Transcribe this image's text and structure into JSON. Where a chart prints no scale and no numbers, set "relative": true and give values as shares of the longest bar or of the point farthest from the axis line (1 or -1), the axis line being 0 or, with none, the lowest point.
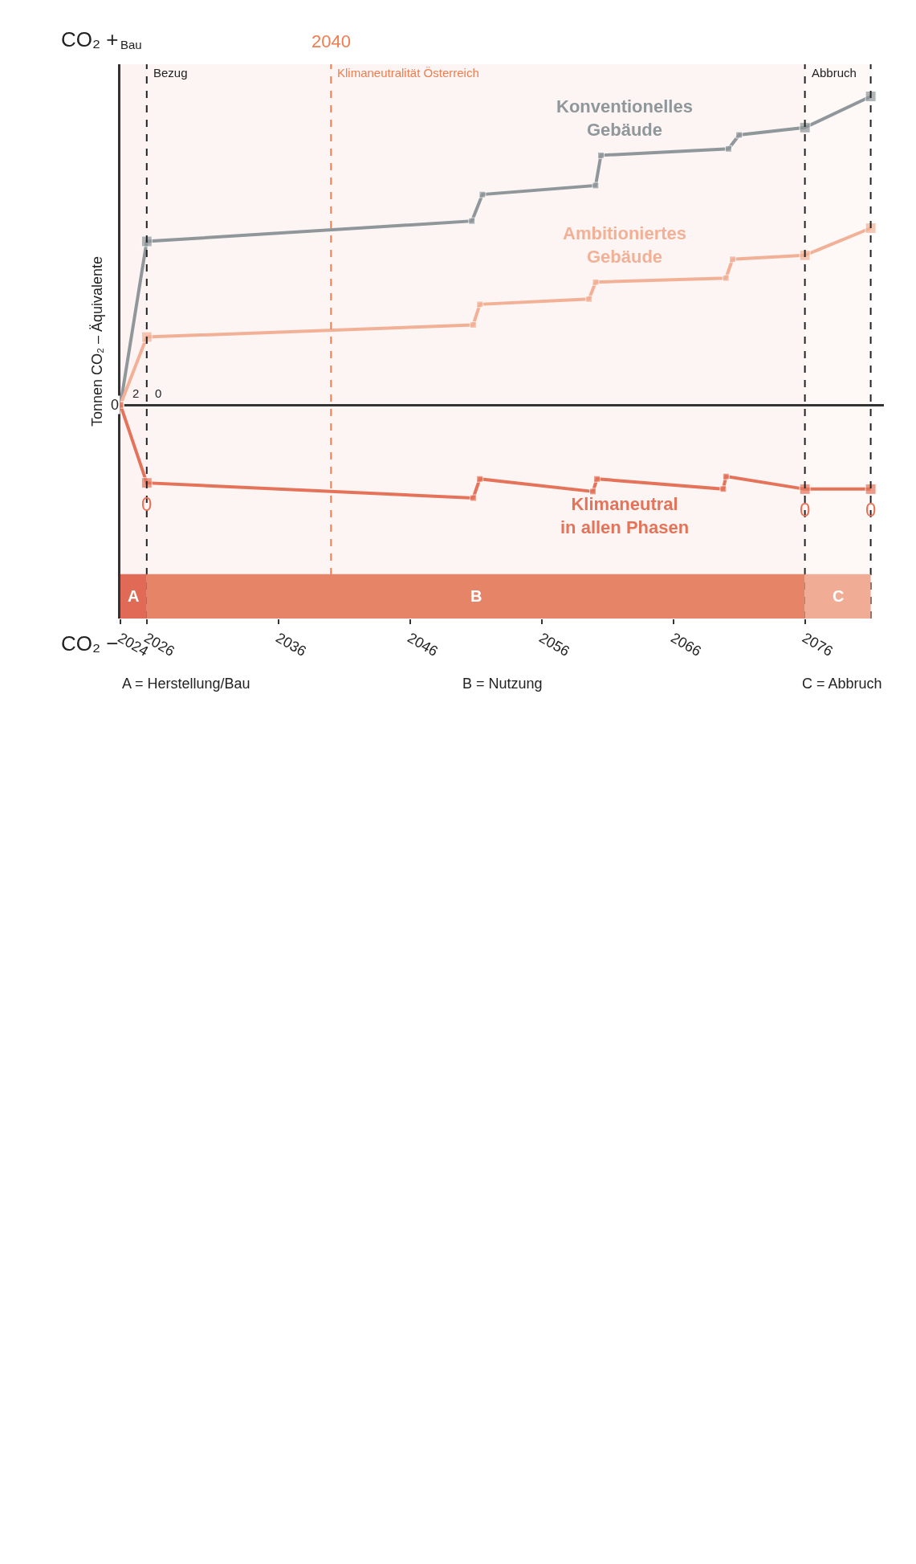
{
  "chart_data": {
    "type": "line",
    "relative": true,
    "ylabel": "Tonnen CO₂ – Äquivalente",
    "marker": "square",
    "line_style": "solid",
    "xlim": [
      2024,
      2082
    ],
    "xticks": [
      2024,
      2026,
      2036,
      2046,
      2056,
      2066,
      2076
    ],
    "series": [
      {
        "name": "Konventionelles Gebäude",
        "color": "#8f979b",
        "x": [
          2024,
          2026,
          2050.7,
          2051.5,
          2060.1,
          2060.5,
          2070.2,
          2071.0,
          2076,
          2081
        ],
        "values": [
          0,
          0.53,
          0.596,
          0.682,
          0.711,
          0.809,
          0.83,
          0.875,
          0.899,
          1.0
        ]
      },
      {
        "name": "Ambitioniertes Gebäude",
        "color": "#f2b197",
        "x": [
          2024,
          2026,
          2050.8,
          2051.3,
          2059.6,
          2060.1,
          2070.0,
          2070.5,
          2076,
          2081
        ],
        "values": [
          0,
          0.22,
          0.259,
          0.326,
          0.343,
          0.398,
          0.411,
          0.472,
          0.485,
          0.573
        ]
      },
      {
        "name": "Klimaneutral in allen Phasen",
        "color": "#e5735a",
        "x": [
          2024,
          2026,
          2050.8,
          2051.3,
          2059.9,
          2060.2,
          2069.8,
          2070.0,
          2076,
          2081
        ],
        "values": [
          0,
          -0.253,
          -0.302,
          -0.24,
          -0.281,
          -0.24,
          -0.273,
          -0.232,
          -0.273,
          -0.273
        ]
      }
    ],
    "ref_lines": [
      {
        "axis": "x",
        "value": 2026,
        "label": "Bezug",
        "color": "#222222",
        "line_style": "dashed"
      },
      {
        "axis": "x",
        "value": 2040,
        "label": "Klimaneutralität Österreich",
        "color": "#ee7d4f",
        "line_style": "dashed"
      },
      {
        "axis": "x",
        "value": 2076,
        "label": "Abbruch",
        "color": "#222222",
        "line_style": "dashed"
      },
      {
        "axis": "x",
        "value": 2081,
        "color": "#222222",
        "line_style": "dashed"
      }
    ],
    "bands": [
      {
        "axis": "x",
        "from": 2024,
        "to": 2026,
        "label": "A",
        "color": "#e06a55"
      },
      {
        "axis": "x",
        "from": 2026,
        "to": 2076,
        "label": "B",
        "color": "#e58466"
      },
      {
        "axis": "x",
        "from": 2076,
        "to": 2081,
        "label": "C",
        "color": "#f0ac94"
      }
    ],
    "annotations": [
      "CO₂ +",
      "CO₂ −",
      "0",
      "Bau",
      "2040",
      {
        "text": "0",
        "x": 2026,
        "y": -0.253
      },
      {
        "text": "0",
        "x": 2076,
        "y": -0.273
      },
      {
        "text": "0",
        "x": 2081,
        "y": -0.273
      },
      "2",
      "0",
      "A = Herstellung/Bau",
      "B = Nutzung",
      "C = Abbruch"
    ],
    "legend": false
  }
}
